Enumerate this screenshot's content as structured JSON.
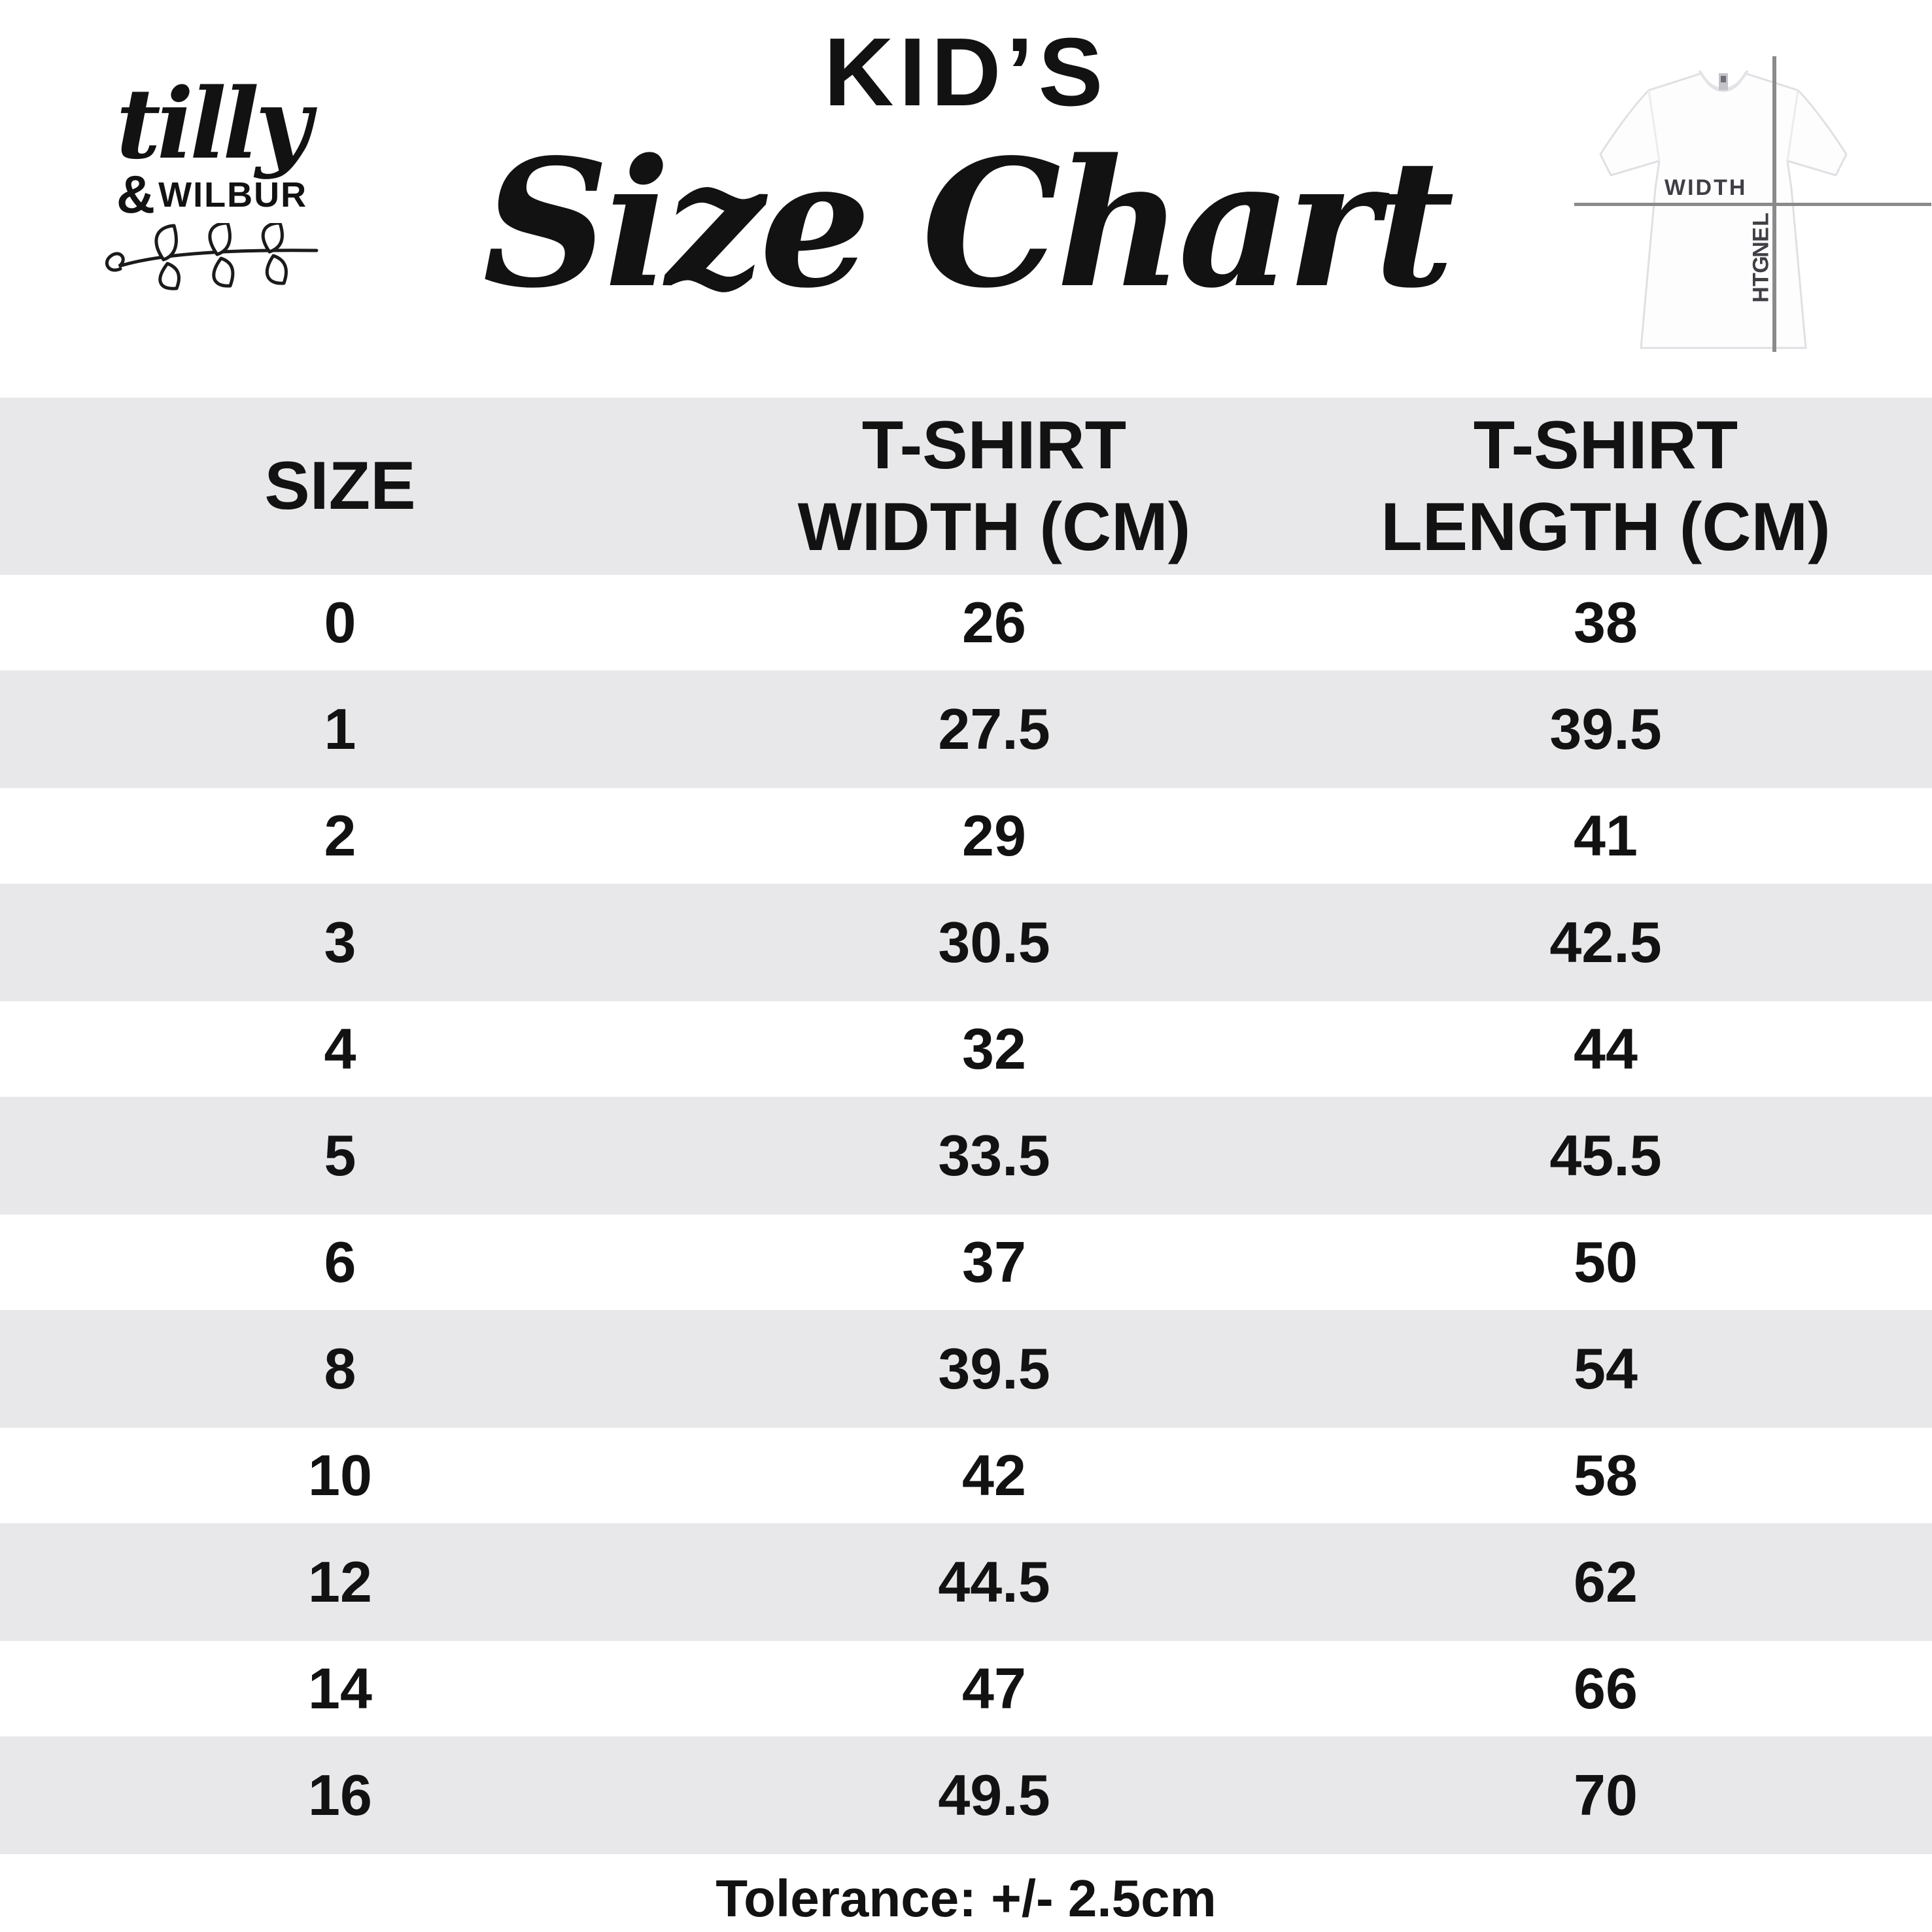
{
  "brand": {
    "script": "tilly",
    "amp": "&",
    "caps": "WILBUR"
  },
  "header": {
    "kicker": "KID’S",
    "title": "Size Chart"
  },
  "diagram": {
    "width_label": "WIDTH",
    "length_label": "LENGTH"
  },
  "table": {
    "headers": {
      "size": "SIZE",
      "width": "T-SHIRT WIDTH (CM)",
      "length": "T-SHIRT LENGTH (CM)"
    },
    "rows": [
      {
        "size": "0",
        "width": "26",
        "length": "38"
      },
      {
        "size": "1",
        "width": "27.5",
        "length": "39.5"
      },
      {
        "size": "2",
        "width": "29",
        "length": "41"
      },
      {
        "size": "3",
        "width": "30.5",
        "length": "42.5"
      },
      {
        "size": "4",
        "width": "32",
        "length": "44"
      },
      {
        "size": "5",
        "width": "33.5",
        "length": "45.5"
      },
      {
        "size": "6",
        "width": "37",
        "length": "50"
      },
      {
        "size": "8",
        "width": "39.5",
        "length": "54"
      },
      {
        "size": "10",
        "width": "42",
        "length": "58"
      },
      {
        "size": "12",
        "width": "44.5",
        "length": "62"
      },
      {
        "size": "14",
        "width": "47",
        "length": "66"
      },
      {
        "size": "16",
        "width": "49.5",
        "length": "70"
      }
    ]
  },
  "footer": {
    "tolerance": "Tolerance: +/- 2.5cm"
  },
  "colors": {
    "stripe": "#e8e8ea",
    "text": "#121212",
    "diagram_line": "#8a8a8a",
    "diagram_label": "#3e3e44"
  },
  "chart_data": {
    "type": "table",
    "title": "KID’S Size Chart",
    "columns": [
      "SIZE",
      "T-SHIRT WIDTH (CM)",
      "T-SHIRT LENGTH (CM)"
    ],
    "rows": [
      [
        0,
        26,
        38
      ],
      [
        1,
        27.5,
        39.5
      ],
      [
        2,
        29,
        41
      ],
      [
        3,
        30.5,
        42.5
      ],
      [
        4,
        32,
        44
      ],
      [
        5,
        33.5,
        45.5
      ],
      [
        6,
        37,
        50
      ],
      [
        8,
        39.5,
        54
      ],
      [
        10,
        42,
        58
      ],
      [
        12,
        44.5,
        62
      ],
      [
        14,
        47,
        66
      ],
      [
        16,
        49.5,
        70
      ]
    ],
    "footnote": "Tolerance: +/- 2.5cm"
  }
}
